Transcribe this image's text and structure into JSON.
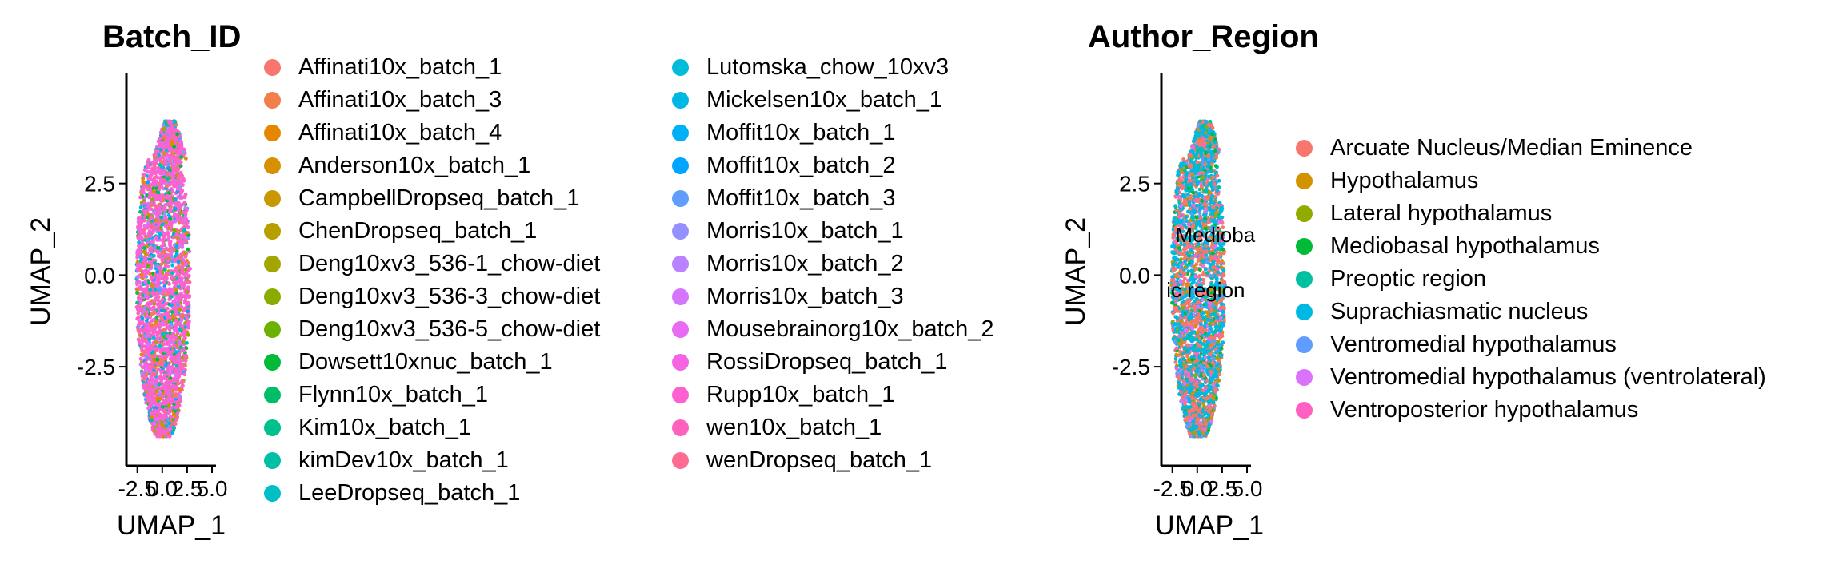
{
  "chart_data": [
    {
      "type": "scatter",
      "title": "Batch_ID",
      "xlabel": "UMAP_1",
      "ylabel": "UMAP_2",
      "x_ticks": [
        "-2.5",
        "0.0",
        "2.5",
        "5.0"
      ],
      "y_ticks": [
        "2.5",
        "0.0",
        "-2.5"
      ],
      "xlim": [
        -3.6,
        5.4
      ],
      "ylim": [
        -5.2,
        5.5
      ],
      "grid": false,
      "legend_placement": "right",
      "point_cloud": {
        "x_range": [
          -2.6,
          2.8
        ],
        "y_range": [
          -4.4,
          4.2
        ]
      },
      "cluster_labels": [],
      "series": [
        {
          "name": "Affinati10x_batch_1",
          "color": "#F8766D"
        },
        {
          "name": "Affinati10x_batch_3",
          "color": "#F07F49"
        },
        {
          "name": "Affinati10x_batch_4",
          "color": "#E58700"
        },
        {
          "name": "Anderson10x_batch_1",
          "color": "#D89000"
        },
        {
          "name": "CampbellDropseq_batch_1",
          "color": "#C99800"
        },
        {
          "name": "ChenDropseq_batch_1",
          "color": "#B79F00"
        },
        {
          "name": "Deng10xv3_536-1_chow-diet",
          "color": "#A3A500"
        },
        {
          "name": "Deng10xv3_536-3_chow-diet",
          "color": "#8BAB00"
        },
        {
          "name": "Deng10xv3_536-5_chow-diet",
          "color": "#6BB100"
        },
        {
          "name": "Dowsett10xnuc_batch_1",
          "color": "#00BA38"
        },
        {
          "name": "Flynn10x_batch_1",
          "color": "#00BE67"
        },
        {
          "name": "Kim10x_batch_1",
          "color": "#00C08B"
        },
        {
          "name": "kimDev10x_batch_1",
          "color": "#00BFA7"
        },
        {
          "name": "LeeDropseq_batch_1",
          "color": "#00BFC4"
        },
        {
          "name": "Lutomska_chow_10xv3",
          "color": "#00BCD8"
        },
        {
          "name": "Mickelsen10x_batch_1",
          "color": "#00B9E3"
        },
        {
          "name": "Moffit10x_batch_1",
          "color": "#00B0F6"
        },
        {
          "name": "Moffit10x_batch_2",
          "color": "#00A5FF"
        },
        {
          "name": "Moffit10x_batch_3",
          "color": "#619CFF"
        },
        {
          "name": "Morris10x_batch_1",
          "color": "#9590FF"
        },
        {
          "name": "Morris10x_batch_2",
          "color": "#B983FF"
        },
        {
          "name": "Morris10x_batch_3",
          "color": "#D575FE"
        },
        {
          "name": "Mousebrainorg10x_batch_2",
          "color": "#E76BF3"
        },
        {
          "name": "RossiDropseq_batch_1",
          "color": "#F564E3"
        },
        {
          "name": "Rupp10x_batch_1",
          "color": "#FD61D1"
        },
        {
          "name": "wen10x_batch_1",
          "color": "#FF62BC"
        },
        {
          "name": "wenDropseq_batch_1",
          "color": "#FF6C91"
        }
      ]
    },
    {
      "type": "scatter",
      "title": "Author_Region",
      "xlabel": "UMAP_1",
      "ylabel": "UMAP_2",
      "x_ticks": [
        "-2.5",
        "0.0",
        "2.5",
        "5.0"
      ],
      "y_ticks": [
        "2.5",
        "0.0",
        "-2.5"
      ],
      "xlim": [
        -3.6,
        5.4
      ],
      "ylim": [
        -5.2,
        5.5
      ],
      "grid": false,
      "legend_placement": "right",
      "point_cloud": {
        "x_range": [
          -2.6,
          2.8
        ],
        "y_range": [
          -4.4,
          4.2
        ]
      },
      "cluster_labels": [
        {
          "text": "Medioba",
          "x": -2.2,
          "y": 0.9
        },
        {
          "text": "ic region",
          "x": -3.1,
          "y": -0.6
        }
      ],
      "series": [
        {
          "name": "Arcuate Nucleus/Median Eminence",
          "color": "#F8766D"
        },
        {
          "name": "Hypothalamus",
          "color": "#D39200"
        },
        {
          "name": "Lateral hypothalamus",
          "color": "#93AA00"
        },
        {
          "name": "Mediobasal hypothalamus",
          "color": "#00BA38"
        },
        {
          "name": "Preoptic region",
          "color": "#00C19F"
        },
        {
          "name": "Suprachiasmatic nucleus",
          "color": "#00B9E3"
        },
        {
          "name": "Ventromedial hypothalamus",
          "color": "#619CFF"
        },
        {
          "name": "Ventromedial hypothalamus (ventrolateral)",
          "color": "#DB72FB"
        },
        {
          "name": "Ventroposterior hypothalamus",
          "color": "#FF61C3"
        }
      ]
    }
  ]
}
